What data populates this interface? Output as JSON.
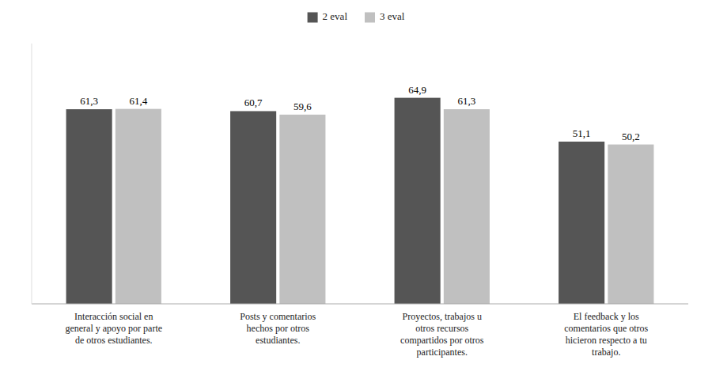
{
  "chart_data": {
    "type": "bar",
    "categories": [
      "Interacción social en\ngeneral y apoyo por parte\nde otros estudiantes.",
      "Posts y comentarios\nhechos por otros\nestudiantes.",
      "Proyectos, trabajos u\notros recursos\ncompartidos por otros\nparticipantes.",
      "El feedback y los\ncomentarios que otros\nhicieron respecto a tu\ntrabajo."
    ],
    "series": [
      {
        "name": "2 eval",
        "color": "#555555",
        "values": [
          61.3,
          60.7,
          64.9,
          51.1
        ],
        "value_labels": [
          "61,3",
          "60,7",
          "64,9",
          "51,1"
        ]
      },
      {
        "name": "3 eval",
        "color": "#c0c0c0",
        "values": [
          61.4,
          59.6,
          61.3,
          50.2
        ],
        "value_labels": [
          "61,4",
          "59,6",
          "61,3",
          "50,2"
        ]
      }
    ],
    "ylim": [
      0,
      82
    ],
    "tick_labels": "x",
    "data_labels": true,
    "legend": "top",
    "grid": false
  }
}
